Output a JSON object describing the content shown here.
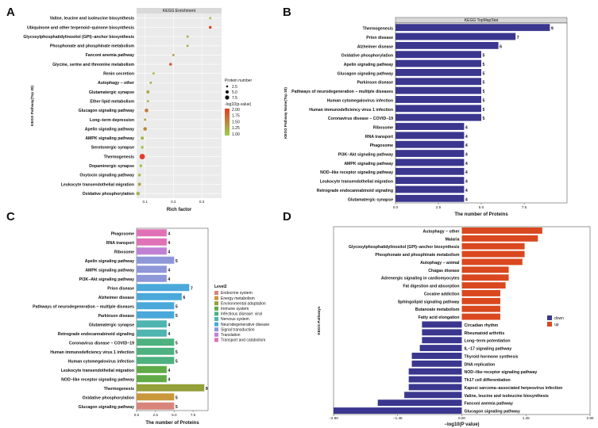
{
  "colors": {
    "navy": "#3b378f",
    "strip": "#d9d9d9",
    "panel": "#ebebeb",
    "down": "#3b378f",
    "up": "#d9481f"
  },
  "panels": [
    {
      "letter": "A",
      "type": "scatter",
      "title": "KEGG Enrichment",
      "xlabel": "Rich factor",
      "ylabel": "KEGG Pathway(Top 20)",
      "xlim": [
        0.07,
        0.37
      ],
      "xticks": [
        "0.1",
        "0.2",
        "0.3"
      ],
      "legend": {
        "size_title": "Protein number",
        "sizes": [
          "2.5",
          "5.0",
          "7.5"
        ],
        "color_title": "-log10(p.value)",
        "colors": [
          "2.00",
          "1.75",
          "1.50",
          "1.25",
          "1.00"
        ]
      },
      "points": [
        {
          "label": "Valine, leucine and isoleucine biosynthesis",
          "x": 0.33,
          "size": 2,
          "p": 1.1
        },
        {
          "label": "Ubiquinone and other terpenoid−quinone biosynthesis",
          "x": 0.33,
          "size": 3,
          "p": 2.0
        },
        {
          "label": "Glycosylphosphatidylinositol (GPI)−anchor biosynthesis",
          "x": 0.25,
          "size": 2,
          "p": 1.2
        },
        {
          "label": "Phosphonate and phosphinate metabolism",
          "x": 0.25,
          "size": 2,
          "p": 1.2
        },
        {
          "label": "Fanconi anemia pathway",
          "x": 0.2,
          "size": 2,
          "p": 1.3
        },
        {
          "label": "Glycine, serine and threonine metabolism",
          "x": 0.19,
          "size": 3,
          "p": 1.85
        },
        {
          "label": "Renin secretion",
          "x": 0.13,
          "size": 2,
          "p": 1.1
        },
        {
          "label": "Autophagy − other",
          "x": 0.12,
          "size": 2,
          "p": 1.2
        },
        {
          "label": "Glutamatergic synapse",
          "x": 0.11,
          "size": 4,
          "p": 1.25
        },
        {
          "label": "Ether lipid metabolism",
          "x": 0.11,
          "size": 2,
          "p": 1.2
        },
        {
          "label": "Glucagon signaling pathway",
          "x": 0.105,
          "size": 5,
          "p": 1.6
        },
        {
          "label": "Long−term depression",
          "x": 0.1,
          "size": 2,
          "p": 1.3
        },
        {
          "label": "Apelin signaling pathway",
          "x": 0.1,
          "size": 5,
          "p": 1.5
        },
        {
          "label": "AMPK signaling pathway",
          "x": 0.09,
          "size": 4,
          "p": 1.2
        },
        {
          "label": "Serotonergic synapse",
          "x": 0.09,
          "size": 3,
          "p": 1.1
        },
        {
          "label": "Thermogenesis",
          "x": 0.09,
          "size": 9,
          "p": 2.0
        },
        {
          "label": "Dopaminergic synapse",
          "x": 0.085,
          "size": 3,
          "p": 1.1
        },
        {
          "label": "Oxytocin signaling pathway",
          "x": 0.08,
          "size": 3,
          "p": 1.15
        },
        {
          "label": "Leukocyte transendothelial migration",
          "x": 0.08,
          "size": 4,
          "p": 1.3
        },
        {
          "label": "Oxidative phosphorylation",
          "x": 0.075,
          "size": 5,
          "p": 1.2
        }
      ]
    },
    {
      "letter": "B",
      "type": "bar",
      "title": "KEGG TopMapStat",
      "xlabel": "The number of Proteins",
      "ylabel": "KEGG Pathway Name(Top 20)",
      "xlim": [
        0,
        10
      ],
      "xticks": [
        "0.0",
        "2.5",
        "5.0",
        "7.5"
      ],
      "categories": [
        "Thermogenesis",
        "Prion disease",
        "Alzheimer disease",
        "Oxidative phosphorylation",
        "Apelin signaling pathway",
        "Glucagon signaling pathway",
        "Parkinson disease",
        "Pathways of neurodegeneration − multiple diseases",
        "Human cytomegalovirus infection",
        "Human immunodeficiency virus 1 infection",
        "Coronavirus disease − COVID−19",
        "Ribosome",
        "RNA transport",
        "Phagosome",
        "PI3K−Akt signaling pathway",
        "AMPK signaling pathway",
        "NOD−like receptor signaling pathway",
        "Leukocyte transendothelial migration",
        "Retrograde endocannabinoid signaling",
        "Glutamatergic synapse"
      ],
      "values": [
        9,
        7,
        6,
        5,
        5,
        5,
        5,
        5,
        5,
        5,
        5,
        4,
        4,
        4,
        4,
        4,
        4,
        4,
        4,
        4
      ],
      "value_labels": [
        "9",
        "7",
        "6",
        "5",
        "5",
        "5",
        "5",
        "5",
        "5",
        "5",
        "5",
        "4",
        "4",
        "4",
        "4",
        "4",
        "4",
        "4",
        "4",
        "4"
      ]
    },
    {
      "letter": "C",
      "type": "bar",
      "title": "",
      "xlabel": "The number of Proteins",
      "ylabel": "",
      "xlim": [
        0,
        9.5
      ],
      "xticks": [
        "0.0",
        "2.5",
        "5.0",
        "7.5"
      ],
      "legend_title": "Level2",
      "legend": [
        {
          "name": "Endocrine system",
          "color": "#d9847a"
        },
        {
          "name": "Energy metabolism",
          "color": "#c9983c"
        },
        {
          "name": "Environmental adaptation",
          "color": "#94a03a"
        },
        {
          "name": "Immune system",
          "color": "#60ab48"
        },
        {
          "name": "Infectious disease: viral",
          "color": "#4eb180"
        },
        {
          "name": "Nervous system",
          "color": "#4fb5b0"
        },
        {
          "name": "Neurodegenerative disease",
          "color": "#4aa9da"
        },
        {
          "name": "Signal transduction",
          "color": "#8e97d8"
        },
        {
          "name": "Translation",
          "color": "#c081d4"
        },
        {
          "name": "Transport and catabolism",
          "color": "#e171b7"
        }
      ],
      "categories": [
        "Phagosome",
        "RNA transport",
        "Ribosome",
        "Apelin signaling pathway",
        "AMPK signaling pathway",
        "PI3K−Akt signaling pathway",
        "Prion disease",
        "Alzheimer disease",
        "Pathways of neurodegeneration − multiple diseases",
        "Parkinson disease",
        "Glutamatergic synapse",
        "Retrograde endocannabinoid signaling",
        "Coronavirus disease − COVID−19",
        "Human immunodeficiency virus 1 infection",
        "Human cytomegalovirus infection",
        "Leukocyte transendothelial migration",
        "NOD−like receptor signaling pathway",
        "Thermogenesis",
        "Oxidative phosphorylation",
        "Glucagon signaling pathway"
      ],
      "values": [
        4,
        4,
        4,
        5,
        4,
        4,
        7,
        6,
        5,
        5,
        4,
        4,
        5,
        5,
        5,
        4,
        4,
        9,
        5,
        5
      ],
      "value_labels": [
        "4",
        "4",
        "4",
        "5",
        "4",
        "4",
        "7",
        "6",
        "5",
        "5",
        "4",
        "4",
        "5",
        "5",
        "5",
        "4",
        "4",
        "9",
        "5",
        "5"
      ],
      "groups": [
        9,
        9,
        8,
        7,
        7,
        7,
        6,
        6,
        6,
        6,
        5,
        5,
        4,
        4,
        4,
        3,
        3,
        2,
        1,
        0
      ]
    },
    {
      "letter": "D",
      "type": "bar",
      "title": "",
      "xlabel": "−log10(P value)",
      "ylabel": "KEGG Pathways",
      "xlim": [
        -2.9,
        2.9
      ],
      "xticks": [
        "−2.90",
        "−1.45",
        "0.00",
        "1.45",
        "2.90"
      ],
      "legend": [
        {
          "name": "down",
          "color": "#3b378f"
        },
        {
          "name": "up",
          "color": "#d9481f"
        }
      ],
      "categories": [
        "Autophagy − other",
        "Malaria",
        "Glycosylphosphatidylinositol (GPI)−anchor biosynthesis",
        "Phosphonate and phosphinate metabolism",
        "Autophagy − animal",
        "Chagas disease",
        "Adrenergic signaling in cardiomyocytes",
        "Fat digestion and absorption",
        "Cocaine addiction",
        "Sphingolipid signaling pathway",
        "Butanoate metabolism",
        "Fatty acid elongation",
        "Circadian rhythm",
        "Rheumatoid arthritis",
        "Long−term potentiation",
        "IL−17 signaling pathway",
        "Thyroid hormone synthesis",
        "DNA replication",
        "NOD−like receptor signaling pathway",
        "Th17 cell differentiation",
        "Kaposi sarcoma−associated herpesvirus infection",
        "Valine, leucine and isoleucine biosynthesis",
        "Fanconi anemia pathway",
        "Glucagon signaling pathway"
      ],
      "values": [
        1.82,
        1.72,
        1.42,
        1.42,
        1.37,
        1.06,
        1.06,
        0.99,
        0.87,
        0.87,
        0.87,
        0.87,
        -0.9,
        -0.9,
        -0.9,
        -0.95,
        -1.13,
        -1.13,
        -1.2,
        -1.2,
        -1.2,
        -1.3,
        -1.9,
        -2.9
      ]
    }
  ]
}
